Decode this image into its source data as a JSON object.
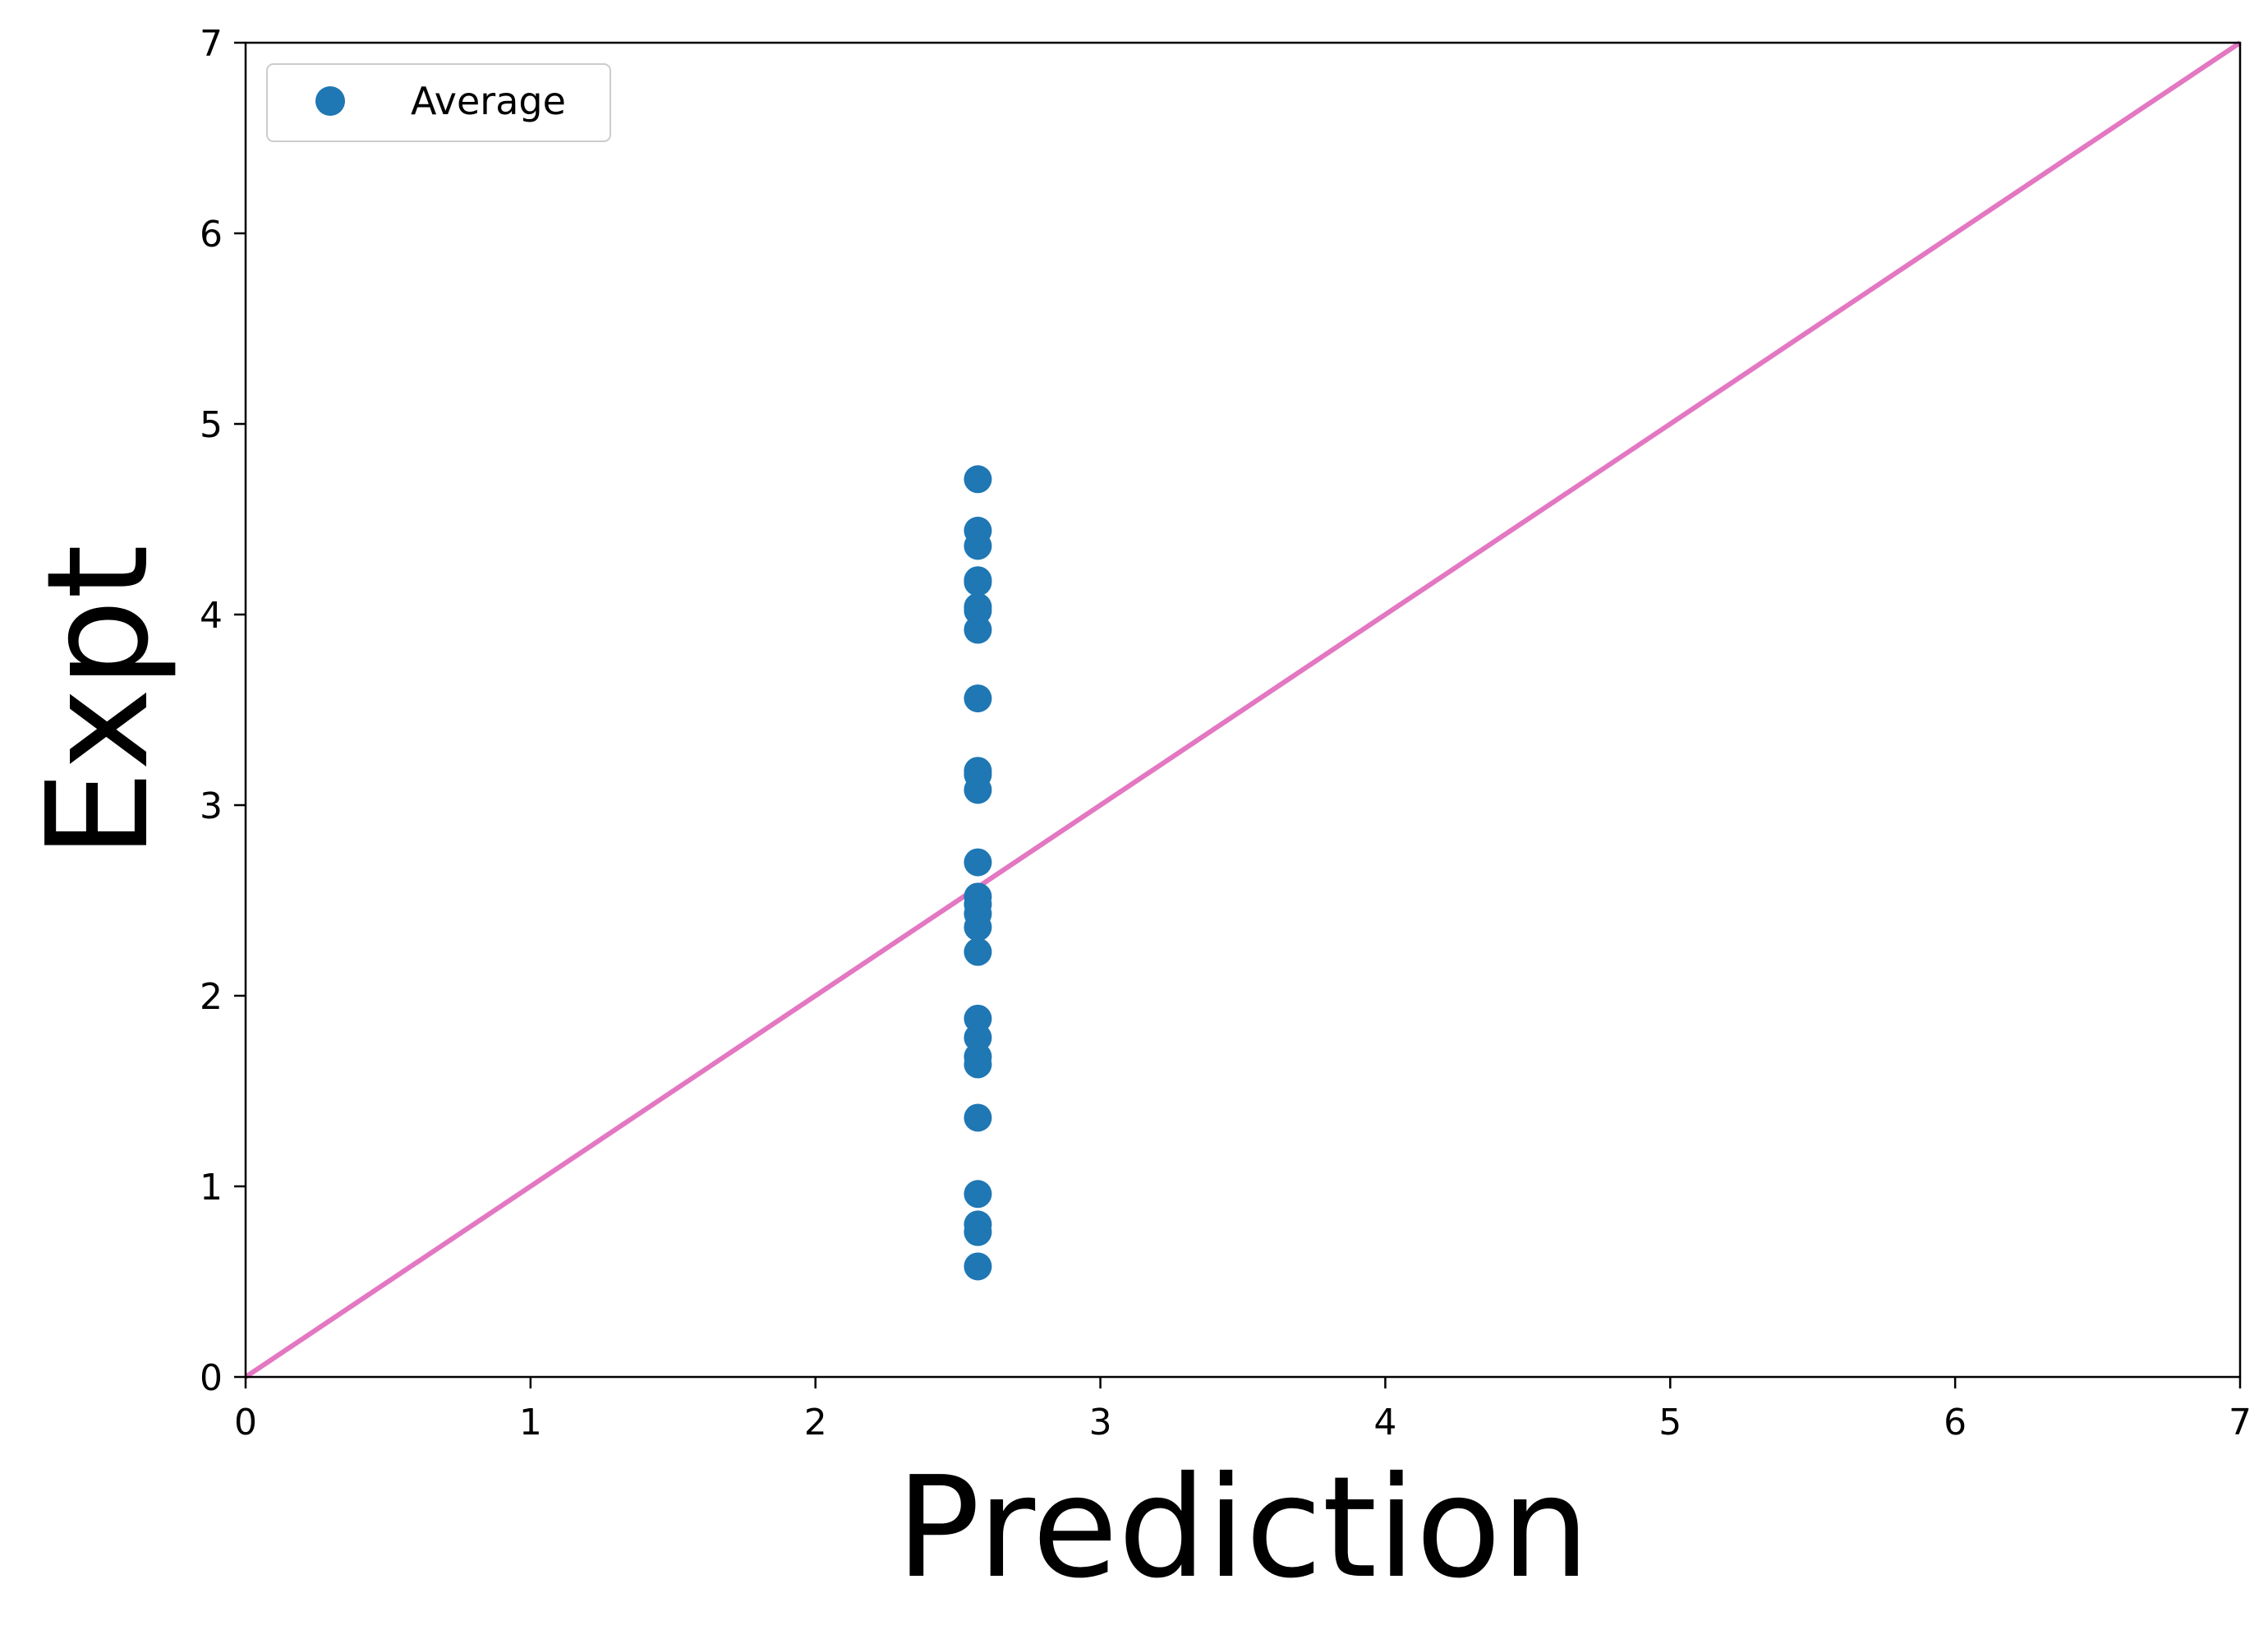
{
  "chart_data": {
    "type": "scatter",
    "title": "",
    "xlabel": "Prediction",
    "ylabel": "Expt",
    "xlim": [
      0,
      7
    ],
    "ylim": [
      0,
      7
    ],
    "xticks": [
      "0",
      "1",
      "2",
      "3",
      "4",
      "5",
      "6",
      "7"
    ],
    "yticks": [
      "0",
      "1",
      "2",
      "3",
      "4",
      "5",
      "6",
      "7"
    ],
    "grid": false,
    "legend_position": "top-left",
    "series": [
      {
        "name": "Average",
        "type": "scatter",
        "color": "#1f77b4",
        "x": [
          2.57,
          2.57,
          2.57,
          2.57,
          2.57,
          2.57,
          2.57,
          2.57,
          2.57,
          2.57,
          2.57,
          2.57,
          2.57,
          2.57,
          2.57,
          2.57,
          2.57,
          2.57,
          2.57,
          2.57,
          2.57,
          2.57,
          2.57,
          2.57,
          2.57,
          2.57,
          2.57
        ],
        "y": [
          4.71,
          4.44,
          4.36,
          4.18,
          4.04,
          4.02,
          3.92,
          3.56,
          3.18,
          3.08,
          2.7,
          2.52,
          2.43,
          2.36,
          2.23,
          1.88,
          1.78,
          1.68,
          1.64,
          1.36,
          0.96,
          0.8,
          0.76,
          0.58,
          2.48,
          4.17,
          3.16
        ]
      }
    ],
    "reference_line": {
      "x": [
        0,
        7
      ],
      "y": [
        0,
        7
      ],
      "color": "#e377c2"
    }
  }
}
